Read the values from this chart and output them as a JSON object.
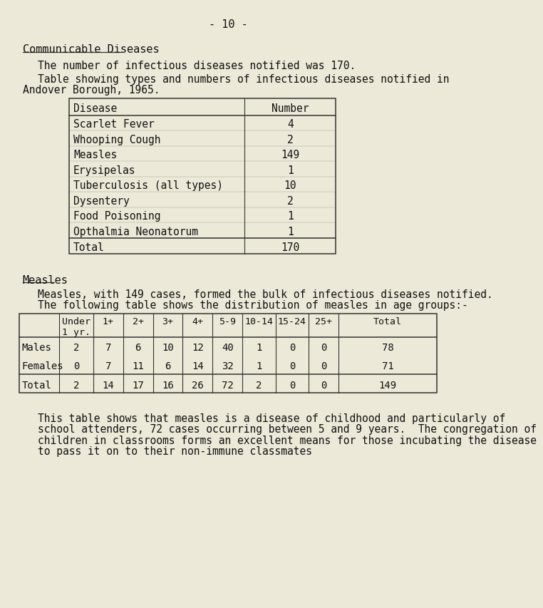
{
  "bg_color": "#ece9d8",
  "page_number": "- 10 -",
  "title": "Communicable Diseases",
  "para1": "The number of infectious diseases notified was 170.",
  "para2a": "Table showing types and numbers of infectious diseases notified in",
  "para2b": "Andover Borough, 1965.",
  "table1_headers": [
    "Disease",
    "Number"
  ],
  "table1_rows": [
    [
      "Scarlet Fever",
      "4"
    ],
    [
      "Whooping Cough",
      "2"
    ],
    [
      "Measles",
      "149"
    ],
    [
      "Erysipelas",
      "1"
    ],
    [
      "Tuberculosis (all types)",
      "10"
    ],
    [
      "Dysentery",
      "2"
    ],
    [
      "Food Poisoning",
      "1"
    ],
    [
      "Opthalmia Neonatorum",
      "1"
    ]
  ],
  "table1_total": [
    "Total",
    "170"
  ],
  "measles_title": "Measles",
  "measles_para1": "Measles, with 149 cases, formed the bulk of infectious diseases notified.",
  "measles_para2": "The following table shows the distribution of measles in age groups:-",
  "table2_headers": [
    "",
    "Under\n1 yr.",
    "1+",
    "2+",
    "3+",
    "4+",
    "5-9",
    "10-14",
    "15-24",
    "25+",
    "Total"
  ],
  "table2_rows": [
    [
      "Males",
      "2",
      "7",
      "6",
      "10",
      "12",
      "40",
      "1",
      "0",
      "0",
      "78"
    ],
    [
      "Females",
      "0",
      "7",
      "11",
      "6",
      "14",
      "32",
      "1",
      "0",
      "0",
      "71"
    ]
  ],
  "table2_total": [
    "Total",
    "2",
    "14",
    "17",
    "16",
    "26",
    "72",
    "2",
    "0",
    "0",
    "149"
  ],
  "closing_para1": "This table shows that measles is a disease of childhood and particularly of",
  "closing_para2": "school attenders, 72 cases occurring between 5 and 9 years.  The congregation of",
  "closing_para3": "children in classrooms forms an excellent means for those incubating the disease",
  "closing_para4": "to pass it on to their non-immune classmates",
  "font_family": "monospace",
  "text_color": "#111111",
  "line_color": "#333333"
}
